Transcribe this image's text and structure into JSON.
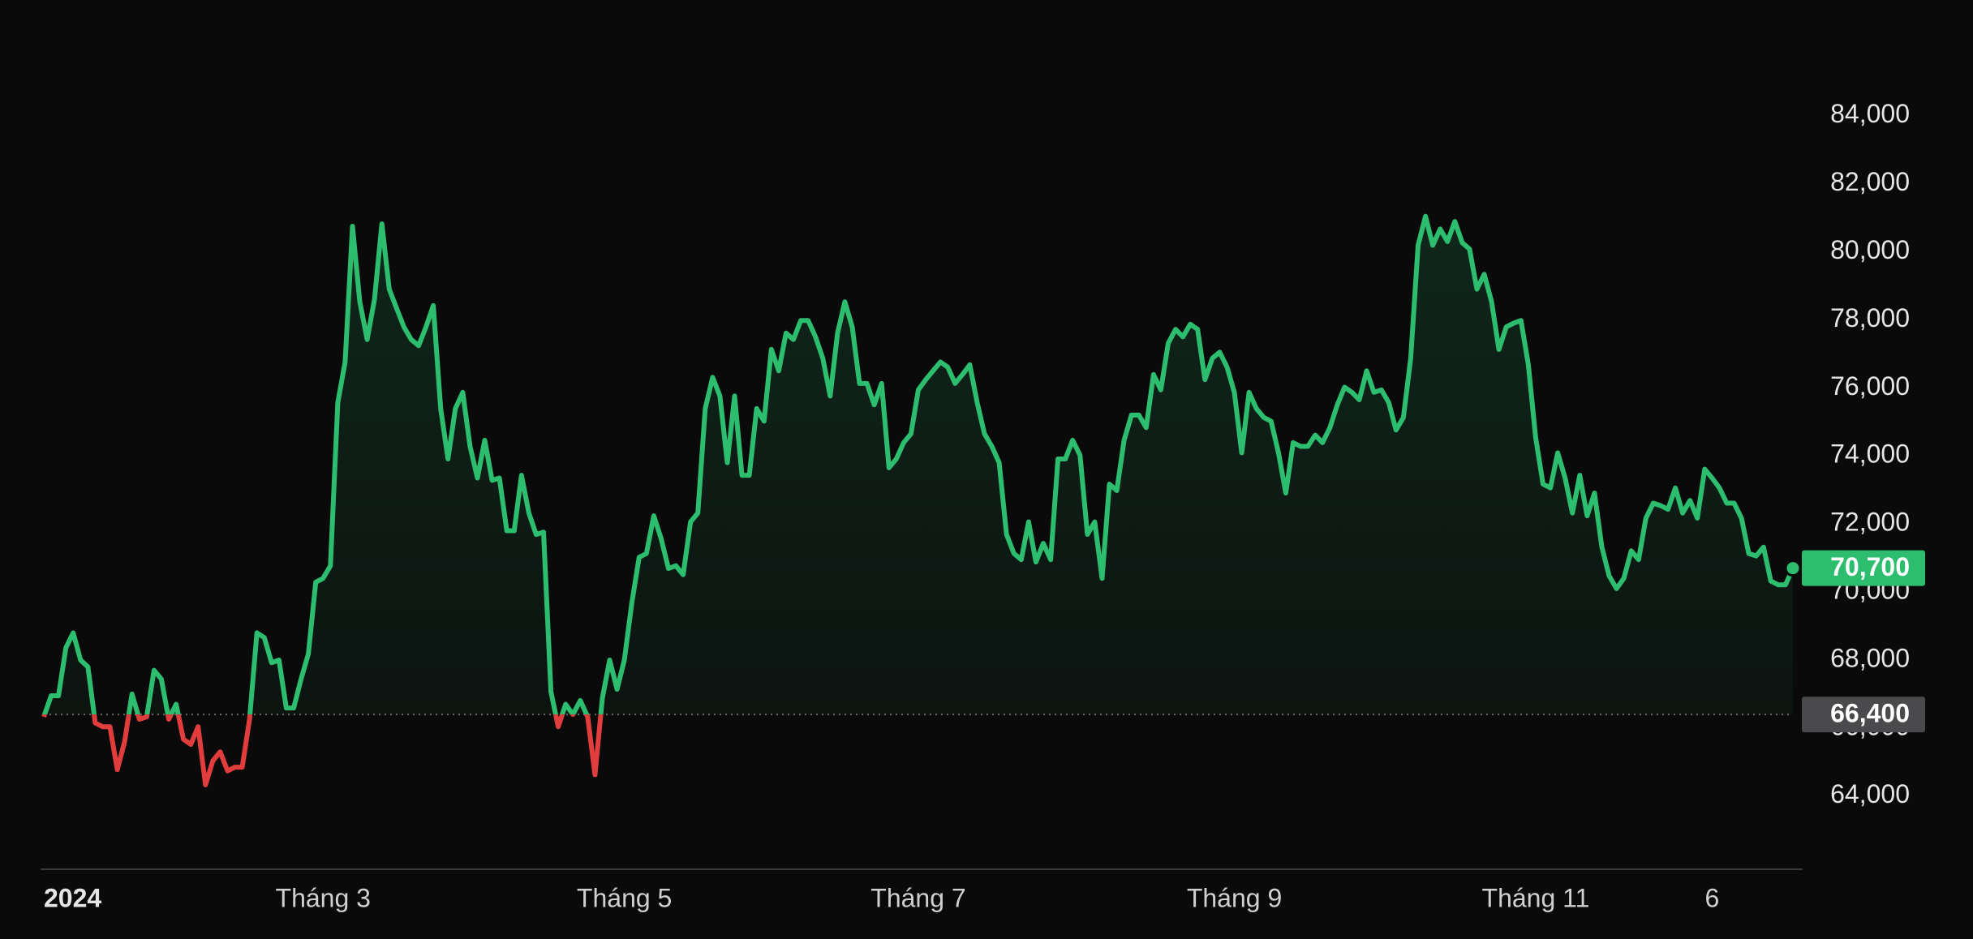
{
  "chart_data": {
    "type": "line",
    "values": [
      66330,
      66950,
      66950,
      68360,
      68800,
      68000,
      67800,
      66150,
      66040,
      66040,
      64780,
      65600,
      67000,
      66260,
      66330,
      67700,
      67440,
      66260,
      66700,
      65670,
      65520,
      66040,
      64330,
      65040,
      65300,
      64740,
      64850,
      64850,
      66260,
      68800,
      68660,
      67920,
      68000,
      66590,
      66590,
      67440,
      68180,
      70290,
      70400,
      70770,
      75570,
      76760,
      80750,
      78530,
      77420,
      78600,
      80820,
      78900,
      78340,
      77790,
      77420,
      77240,
      77790,
      78420,
      75390,
      73910,
      75390,
      75870,
      74280,
      73350,
      74460,
      73280,
      73350,
      71800,
      71800,
      73430,
      72320,
      71690,
      71760,
      67070,
      66040,
      66700,
      66400,
      66810,
      66330,
      64630,
      66880,
      68000,
      67140,
      68000,
      69660,
      71020,
      71130,
      72240,
      71570,
      70690,
      70770,
      70510,
      72060,
      72320,
      75390,
      76310,
      75760,
      73800,
      75760,
      73430,
      73430,
      75390,
      75020,
      77130,
      76500,
      77610,
      77420,
      77980,
      77980,
      77500,
      76870,
      75760,
      77610,
      78530,
      77790,
      76130,
      76130,
      75500,
      76130,
      73650,
      73910,
      74390,
      74650,
      75940,
      76240,
      76500,
      76760,
      76610,
      76130,
      76390,
      76680,
      75570,
      74650,
      74280,
      73800,
      71690,
      71130,
      70950,
      72060,
      70880,
      71430,
      70950,
      73910,
      73910,
      74460,
      74020,
      71690,
      72060,
      70400,
      73170,
      72980,
      74460,
      75200,
      75200,
      74830,
      76390,
      75940,
      77310,
      77720,
      77500,
      77870,
      77720,
      76240,
      76870,
      77050,
      76610,
      75870,
      74090,
      75870,
      75390,
      75130,
      75020,
      74090,
      72910,
      74390,
      74280,
      74280,
      74610,
      74390,
      74830,
      75500,
      76020,
      75870,
      75650,
      76500,
      75870,
      75940,
      75570,
      74760,
      75130,
      76870,
      80190,
      81040,
      80190,
      80670,
      80300,
      80890,
      80270,
      80080,
      78900,
      79340,
      78530,
      77130,
      77790,
      77900,
      77980,
      76680,
      74540,
      73170,
      73060,
      74090,
      73350,
      72320,
      73430,
      72240,
      72910,
      71320,
      70470,
      70100,
      70400,
      71210,
      70950,
      72170,
      72610,
      72540,
      72430,
      73060,
      72320,
      72690,
      72170,
      73610,
      73350,
      73060,
      72610,
      72610,
      72170,
      71130,
      71060,
      71320,
      70320,
      70210,
      70210,
      70700
    ],
    "xticks": [
      {
        "value": 0,
        "label": "2024"
      },
      {
        "value": 38,
        "label": "Tháng 3"
      },
      {
        "value": 79,
        "label": "Tháng 5"
      },
      {
        "value": 119,
        "label": "Tháng 7"
      },
      {
        "value": 162,
        "label": "Tháng 9"
      },
      {
        "value": 203,
        "label": "Tháng 11"
      },
      {
        "value": 227,
        "label": "6"
      }
    ],
    "ylim": [
      61850,
      87400
    ],
    "yticks": [
      {
        "value": 64000,
        "label": "64,000"
      },
      {
        "value": 66000,
        "label": "66,000"
      },
      {
        "value": 68000,
        "label": "68,000"
      },
      {
        "value": 70000,
        "label": "70,000"
      },
      {
        "value": 72000,
        "label": "72,000"
      },
      {
        "value": 74000,
        "label": "74,000"
      },
      {
        "value": 76000,
        "label": "76,000"
      },
      {
        "value": 78000,
        "label": "78,000"
      },
      {
        "value": 80000,
        "label": "80,000"
      },
      {
        "value": 82000,
        "label": "82,000"
      },
      {
        "value": 84000,
        "label": "84,000"
      }
    ],
    "baseline": {
      "value": 66400,
      "label": "66,400"
    },
    "last_price": {
      "value": 70700,
      "label": "70,700"
    },
    "up_color": "#2dbd6e",
    "down_color": "#e23d3d"
  }
}
